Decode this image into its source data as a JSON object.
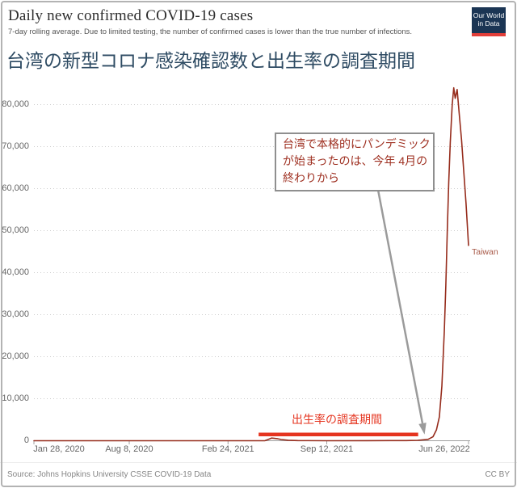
{
  "header": {
    "title": "Daily new confirmed COVID-19 cases",
    "subtitle": "7-day rolling average. Due to limited testing, the number of confirmed cases is lower than the true number of infections.",
    "logo_line1": "Our World",
    "logo_line2": "in Data",
    "heading_ja": "台湾の新型コロナ感染確認数と出生率の調査期間"
  },
  "annotation": {
    "full_text": "台湾で本格的にパンデミックが始まったのは、今年 4月の終わりから",
    "lines": [
      "台湾で本格的にパンデミック",
      "が始まったのは、今年 4月の",
      "終わりから"
    ]
  },
  "survey_bar": {
    "label": "出生率の調査期間",
    "color": "#e5341f",
    "start_date": "2021-04-27",
    "end_date": "2022-03-16"
  },
  "footer": {
    "source": "Source: Johns Hopkins University CSSE COVID-19 Data",
    "license": "CC BY"
  },
  "colors": {
    "line": "#962c1c",
    "accent_red": "#e5341f",
    "logo_bg": "#1b3554",
    "logo_stripe": "#e23e39",
    "heading_blue": "#2e4b63",
    "annotation_text": "#9e2f20",
    "grid": "#cccccc",
    "axis": "#a0a0a0",
    "tick_text": "#666666"
  },
  "chart_data": {
    "type": "line",
    "title": "Daily new confirmed COVID-19 cases",
    "subtitle": "7-day rolling average",
    "x_range": [
      "2020-01-28",
      "2022-06-26"
    ],
    "x_ticks": [
      {
        "date": "2020-01-28",
        "label": "Jan 28, 2020"
      },
      {
        "date": "2020-08-08",
        "label": "Aug 8, 2020"
      },
      {
        "date": "2021-02-24",
        "label": "Feb 24, 2021"
      },
      {
        "date": "2021-09-12",
        "label": "Sep 12, 2021"
      },
      {
        "date": "2022-06-26",
        "label": "Jun 26, 2022"
      }
    ],
    "y_ticks": [
      0,
      10000,
      20000,
      30000,
      40000,
      50000,
      60000,
      70000,
      80000
    ],
    "y_tick_labels": [
      "0",
      "10,000",
      "20,000",
      "30,000",
      "40,000",
      "50,000",
      "60,000",
      "70,000",
      "80,000"
    ],
    "ylim": [
      0,
      86000
    ],
    "grid": "horizontal-dotted",
    "legend": "series-end-label",
    "series": [
      {
        "name": "Taiwan",
        "color": "#962c1c",
        "points": [
          [
            "2020-01-28",
            0
          ],
          [
            "2020-05-01",
            1
          ],
          [
            "2020-08-08",
            1
          ],
          [
            "2020-12-01",
            1
          ],
          [
            "2021-03-01",
            2
          ],
          [
            "2021-04-20",
            3
          ],
          [
            "2021-05-10",
            25
          ],
          [
            "2021-05-16",
            290
          ],
          [
            "2021-05-23",
            630
          ],
          [
            "2021-05-29",
            555
          ],
          [
            "2021-06-05",
            470
          ],
          [
            "2021-06-12",
            295
          ],
          [
            "2021-06-26",
            115
          ],
          [
            "2021-07-15",
            35
          ],
          [
            "2021-09-12",
            8
          ],
          [
            "2021-12-01",
            12
          ],
          [
            "2022-01-20",
            42
          ],
          [
            "2022-02-20",
            48
          ],
          [
            "2022-03-15",
            95
          ],
          [
            "2022-04-05",
            320
          ],
          [
            "2022-04-15",
            950
          ],
          [
            "2022-04-22",
            2600
          ],
          [
            "2022-04-28",
            5700
          ],
          [
            "2022-05-03",
            13000
          ],
          [
            "2022-05-08",
            26000
          ],
          [
            "2022-05-11",
            37000
          ],
          [
            "2022-05-14",
            50000
          ],
          [
            "2022-05-17",
            61500
          ],
          [
            "2022-05-20",
            71000
          ],
          [
            "2022-05-24",
            80000
          ],
          [
            "2022-05-27",
            84000
          ],
          [
            "2022-05-30",
            81500
          ],
          [
            "2022-06-03",
            83600
          ],
          [
            "2022-06-07",
            78000
          ],
          [
            "2022-06-12",
            71500
          ],
          [
            "2022-06-17",
            63000
          ],
          [
            "2022-06-21",
            56500
          ],
          [
            "2022-06-26",
            46500
          ]
        ]
      }
    ]
  }
}
